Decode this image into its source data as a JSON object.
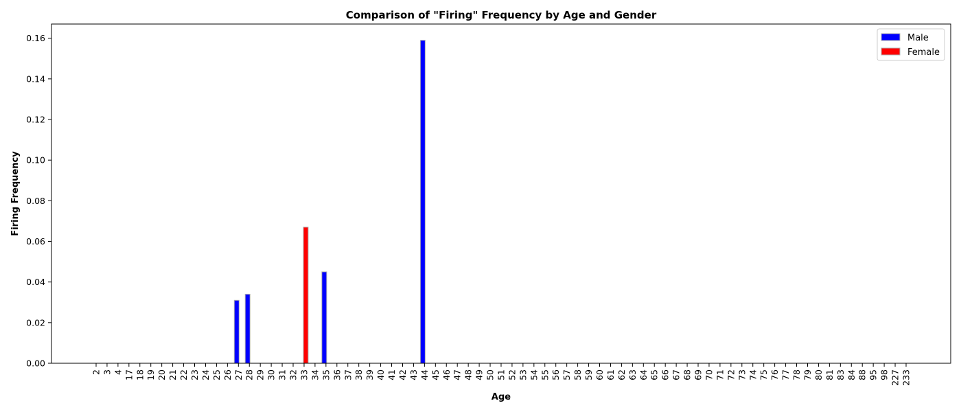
{
  "chart_data": {
    "type": "bar",
    "title": "Comparison of \"Firing\" Frequency by Age and Gender",
    "xlabel": "Age",
    "ylabel": "Firing Frequency",
    "ylim": [
      0,
      0.167
    ],
    "yticks": [
      "0.00",
      "0.02",
      "0.04",
      "0.06",
      "0.08",
      "0.10",
      "0.12",
      "0.14",
      "0.16"
    ],
    "categories": [
      "2",
      "3",
      "4",
      "17",
      "18",
      "19",
      "20",
      "21",
      "22",
      "23",
      "24",
      "25",
      "26",
      "27",
      "28",
      "29",
      "30",
      "31",
      "32",
      "33",
      "34",
      "35",
      "36",
      "37",
      "38",
      "39",
      "40",
      "41",
      "42",
      "43",
      "44",
      "45",
      "46",
      "47",
      "48",
      "49",
      "50",
      "51",
      "52",
      "53",
      "54",
      "55",
      "56",
      "57",
      "58",
      "59",
      "60",
      "61",
      "62",
      "63",
      "64",
      "65",
      "66",
      "67",
      "68",
      "69",
      "70",
      "71",
      "72",
      "73",
      "74",
      "75",
      "76",
      "77",
      "78",
      "79",
      "80",
      "81",
      "83",
      "84",
      "88",
      "95",
      "98",
      "227",
      "233"
    ],
    "series": [
      {
        "name": "Male",
        "color": "#0000ff",
        "values": [
          0,
          0,
          0,
          0,
          0,
          0,
          0,
          0,
          0,
          0,
          0,
          0,
          0,
          0.031,
          0.034,
          0,
          0,
          0,
          0,
          0,
          0,
          0.045,
          0,
          0,
          0,
          0,
          0,
          0,
          0,
          0,
          0.159,
          0,
          0,
          0,
          0,
          0,
          0,
          0,
          0,
          0,
          0,
          0,
          0,
          0,
          0,
          0,
          0,
          0,
          0,
          0,
          0,
          0,
          0,
          0,
          0,
          0,
          0,
          0,
          0,
          0,
          0,
          0,
          0,
          0,
          0,
          0,
          0,
          0,
          0,
          0,
          0,
          0,
          0,
          0,
          0
        ]
      },
      {
        "name": "Female",
        "color": "#ff0000",
        "values": [
          0,
          0,
          0,
          0,
          0,
          0,
          0,
          0,
          0,
          0,
          0,
          0,
          0,
          0,
          0,
          0,
          0,
          0,
          0,
          0.067,
          0,
          0,
          0,
          0,
          0,
          0,
          0,
          0,
          0,
          0,
          0,
          0,
          0,
          0,
          0,
          0,
          0,
          0,
          0,
          0,
          0,
          0,
          0,
          0,
          0,
          0,
          0,
          0,
          0,
          0,
          0,
          0,
          0,
          0,
          0,
          0,
          0,
          0,
          0,
          0,
          0,
          0,
          0,
          0,
          0,
          0,
          0,
          0,
          0,
          0,
          0,
          0,
          0,
          0,
          0
        ]
      }
    ],
    "grid": false,
    "legend_position": "top-right"
  }
}
